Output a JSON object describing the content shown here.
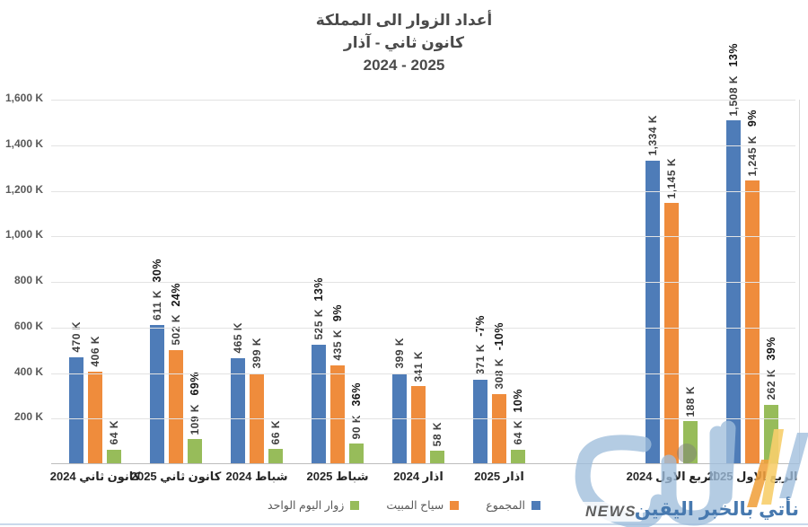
{
  "chart_data": {
    "type": "bar",
    "title_lines": [
      "أعداد الزوار الى المملكة",
      "كانون ثاني - آذار",
      "2025 - 2024"
    ],
    "ylim": [
      0,
      1600
    ],
    "grid": true,
    "legend_position": "bottom",
    "y_ticks": [
      {
        "value": 1600,
        "label": "1,600 K"
      },
      {
        "value": 1400,
        "label": "1,400 K"
      },
      {
        "value": 1200,
        "label": "1,200 K"
      },
      {
        "value": 1000,
        "label": "1,000 K"
      },
      {
        "value": 800,
        "label": "800 K"
      },
      {
        "value": 600,
        "label": "600 K"
      },
      {
        "value": 400,
        "label": "400 K"
      },
      {
        "value": 200,
        "label": "200 K"
      }
    ],
    "series": [
      {
        "key": "total",
        "name": "المجموع",
        "color": "#4E7CB8"
      },
      {
        "key": "overnight-tourists",
        "name": "سياح المبيت",
        "color": "#EF8C3C"
      },
      {
        "key": "one-day-visitors",
        "name": "زوار اليوم الواحد",
        "color": "#97BC5A"
      }
    ],
    "groups": [
      {
        "label": "كانون ثاني 2024",
        "values": [
          470,
          406,
          64
        ],
        "value_labels": [
          "470 K",
          "406 K",
          "64 K"
        ],
        "pct_labels": [
          null,
          null,
          null
        ]
      },
      {
        "label": "كانون ثاني 2025",
        "values": [
          611,
          502,
          109
        ],
        "value_labels": [
          "611 K",
          "502 K",
          "109 K"
        ],
        "pct_labels": [
          "30%",
          "24%",
          "69%"
        ]
      },
      {
        "label": "شباط 2024",
        "values": [
          465,
          399,
          66
        ],
        "value_labels": [
          "465 K",
          "399 K",
          "66 K"
        ],
        "pct_labels": [
          null,
          null,
          null
        ]
      },
      {
        "label": "شباط 2025",
        "values": [
          525,
          435,
          90
        ],
        "value_labels": [
          "525 K",
          "435 K",
          "90 K"
        ],
        "pct_labels": [
          "13%",
          "9%",
          "36%"
        ]
      },
      {
        "label": "اذار 2024",
        "values": [
          399,
          341,
          58
        ],
        "value_labels": [
          "399 K",
          "341 K",
          "58 K"
        ],
        "pct_labels": [
          null,
          null,
          null
        ]
      },
      {
        "label": "اذار 2025",
        "values": [
          371,
          308,
          64
        ],
        "value_labels": [
          "371 K",
          "308 K",
          "64 K"
        ],
        "pct_labels": [
          "-7%",
          "-10%",
          "10%"
        ]
      },
      {
        "label": "الربع الاول 2024",
        "values": [
          1334,
          1145,
          188
        ],
        "spacer_before": true,
        "value_labels": [
          "1,334 K",
          "1,145 K",
          "188 K"
        ],
        "pct_labels": [
          null,
          null,
          null
        ]
      },
      {
        "label": "الربع الاول 2025",
        "values": [
          1508,
          1245,
          262
        ],
        "value_labels": [
          "1,508 K",
          "1,245 K",
          "262 K"
        ],
        "pct_labels": [
          "13%",
          "9%",
          "39%"
        ]
      }
    ]
  },
  "watermark": {
    "news_label": "NEWS",
    "tagline": "نأتي بالخبر اليقين",
    "logo_colors": {
      "blue": "#9FBEDC",
      "orange": "#F0A03C",
      "yellow": "#F7CE6B",
      "gray": "#7A7A7A"
    }
  }
}
